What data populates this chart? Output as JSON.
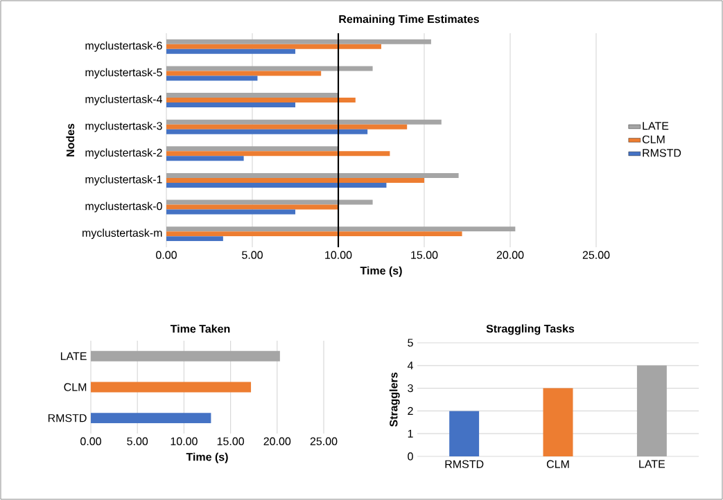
{
  "chart_data": [
    {
      "type": "bar",
      "orientation": "horizontal",
      "title": "Remaining Time Estimates",
      "xlabel": "Time (s)",
      "ylabel": "Nodes",
      "categories": [
        "myclustertask-6",
        "myclustertask-5",
        "myclustertask-4",
        "myclustertask-3",
        "myclustertask-2",
        "myclustertask-1",
        "myclustertask-0",
        "myclustertask-m"
      ],
      "series": [
        {
          "name": "LATE",
          "color": "#a5a5a5",
          "values": [
            15.4,
            12.0,
            10.0,
            16.0,
            10.0,
            17.0,
            12.0,
            20.3
          ]
        },
        {
          "name": "CLM",
          "color": "#ed7d31",
          "values": [
            12.5,
            9.0,
            11.0,
            14.0,
            13.0,
            15.0,
            10.0,
            17.2
          ]
        },
        {
          "name": "RMSTD",
          "color": "#4472c4",
          "values": [
            7.5,
            5.3,
            7.5,
            11.7,
            4.5,
            12.8,
            7.5,
            3.3
          ]
        }
      ],
      "xlim": [
        0,
        25
      ],
      "xticks": [
        {
          "value": 0,
          "label": "0.00"
        },
        {
          "value": 5,
          "label": "5.00"
        },
        {
          "value": 10,
          "label": "10.00"
        },
        {
          "value": 15,
          "label": "15.00"
        },
        {
          "value": 20,
          "label": "20.00"
        },
        {
          "value": 25,
          "label": "25.00"
        }
      ],
      "ref_lines": [
        {
          "axis": "x",
          "value": 10,
          "color": "#000000"
        }
      ],
      "grid": "x",
      "legend": "right"
    },
    {
      "type": "bar",
      "orientation": "horizontal",
      "title": "Time Taken",
      "xlabel": "Time (s)",
      "categories": [
        "LATE",
        "CLM",
        "RMSTD"
      ],
      "values": [
        20.3,
        17.2,
        12.9
      ],
      "colors": [
        "#a5a5a5",
        "#ed7d31",
        "#4472c4"
      ],
      "xlim": [
        0,
        25
      ],
      "xticks": [
        {
          "value": 0,
          "label": "0.00"
        },
        {
          "value": 5,
          "label": "5.00"
        },
        {
          "value": 10,
          "label": "10.00"
        },
        {
          "value": 15,
          "label": "15.00"
        },
        {
          "value": 20,
          "label": "20.00"
        },
        {
          "value": 25,
          "label": "25.00"
        }
      ],
      "grid": "x"
    },
    {
      "type": "bar",
      "title": "Straggling Tasks",
      "ylabel": "Stragglers",
      "categories": [
        "RMSTD",
        "CLM",
        "LATE"
      ],
      "values": [
        2,
        3,
        4
      ],
      "colors": [
        "#4472c4",
        "#ed7d31",
        "#a5a5a5"
      ],
      "ylim": [
        0,
        5
      ],
      "yticks": [
        0,
        1,
        2,
        3,
        4,
        5
      ],
      "grid": "y"
    }
  ]
}
